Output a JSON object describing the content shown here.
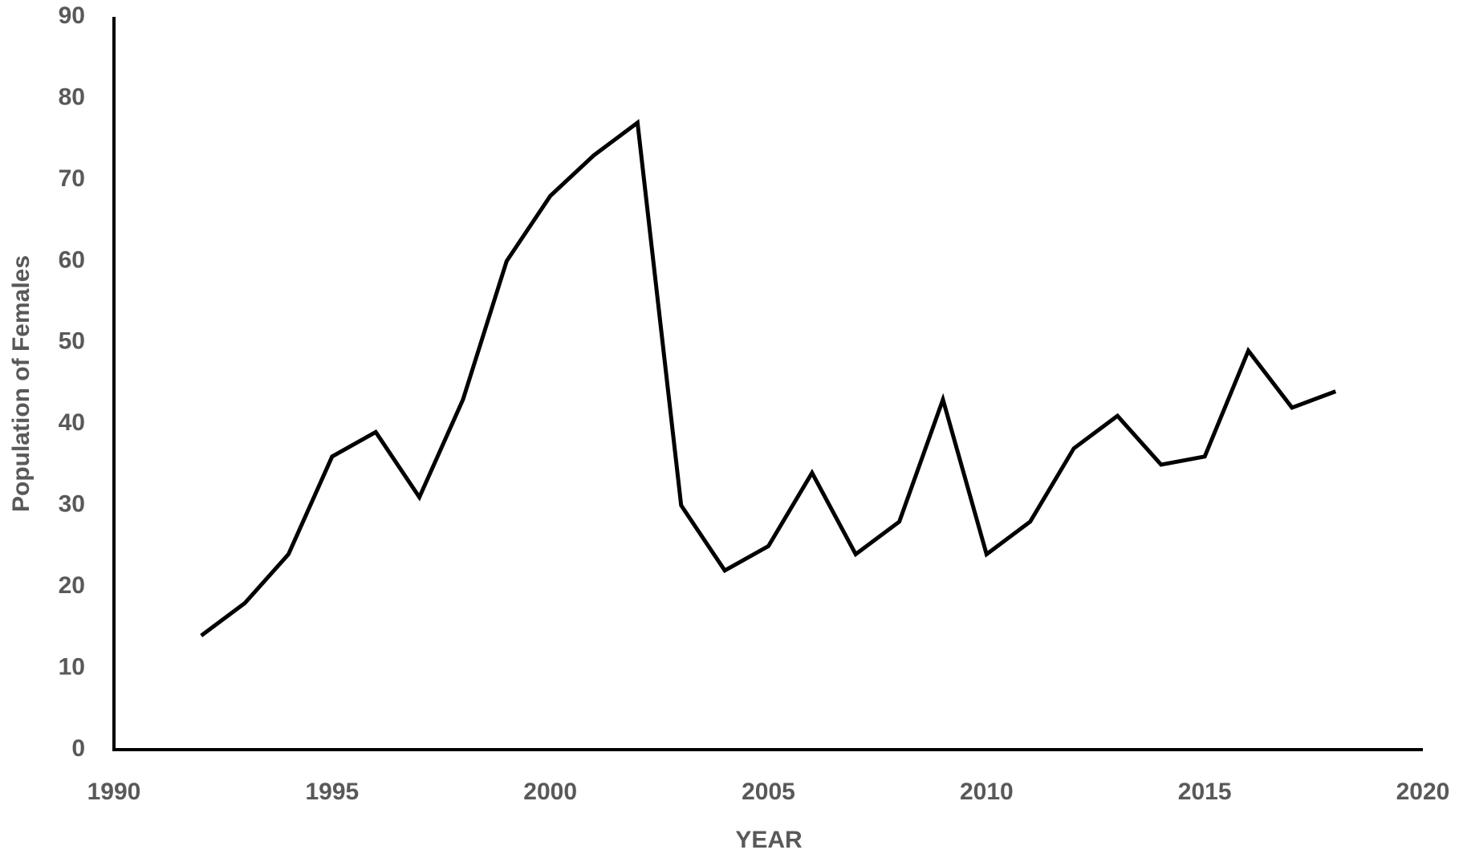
{
  "chart_data": {
    "type": "line",
    "x_label": "YEAR",
    "y_label": "Population of Females",
    "x": [
      1992,
      1993,
      1994,
      1995,
      1996,
      1997,
      1998,
      1999,
      2000,
      2001,
      2002,
      2003,
      2004,
      2005,
      2006,
      2007,
      2008,
      2009,
      2010,
      2011,
      2012,
      2013,
      2014,
      2015,
      2016,
      2017,
      2018
    ],
    "values": [
      14,
      18,
      24,
      36,
      39,
      31,
      43,
      60,
      68,
      73,
      77,
      30,
      22,
      25,
      34,
      24,
      28,
      43,
      24,
      28,
      37,
      41,
      35,
      36,
      49,
      42,
      44
    ],
    "color": "#000000",
    "xlim": [
      1990,
      2020
    ],
    "xticks": [
      1990,
      1995,
      2000,
      2005,
      2010,
      2015,
      2020
    ],
    "ylim": [
      0,
      90
    ],
    "yticks": [
      0,
      10,
      20,
      30,
      40,
      50,
      60,
      70,
      80,
      90
    ],
    "grid": false
  }
}
